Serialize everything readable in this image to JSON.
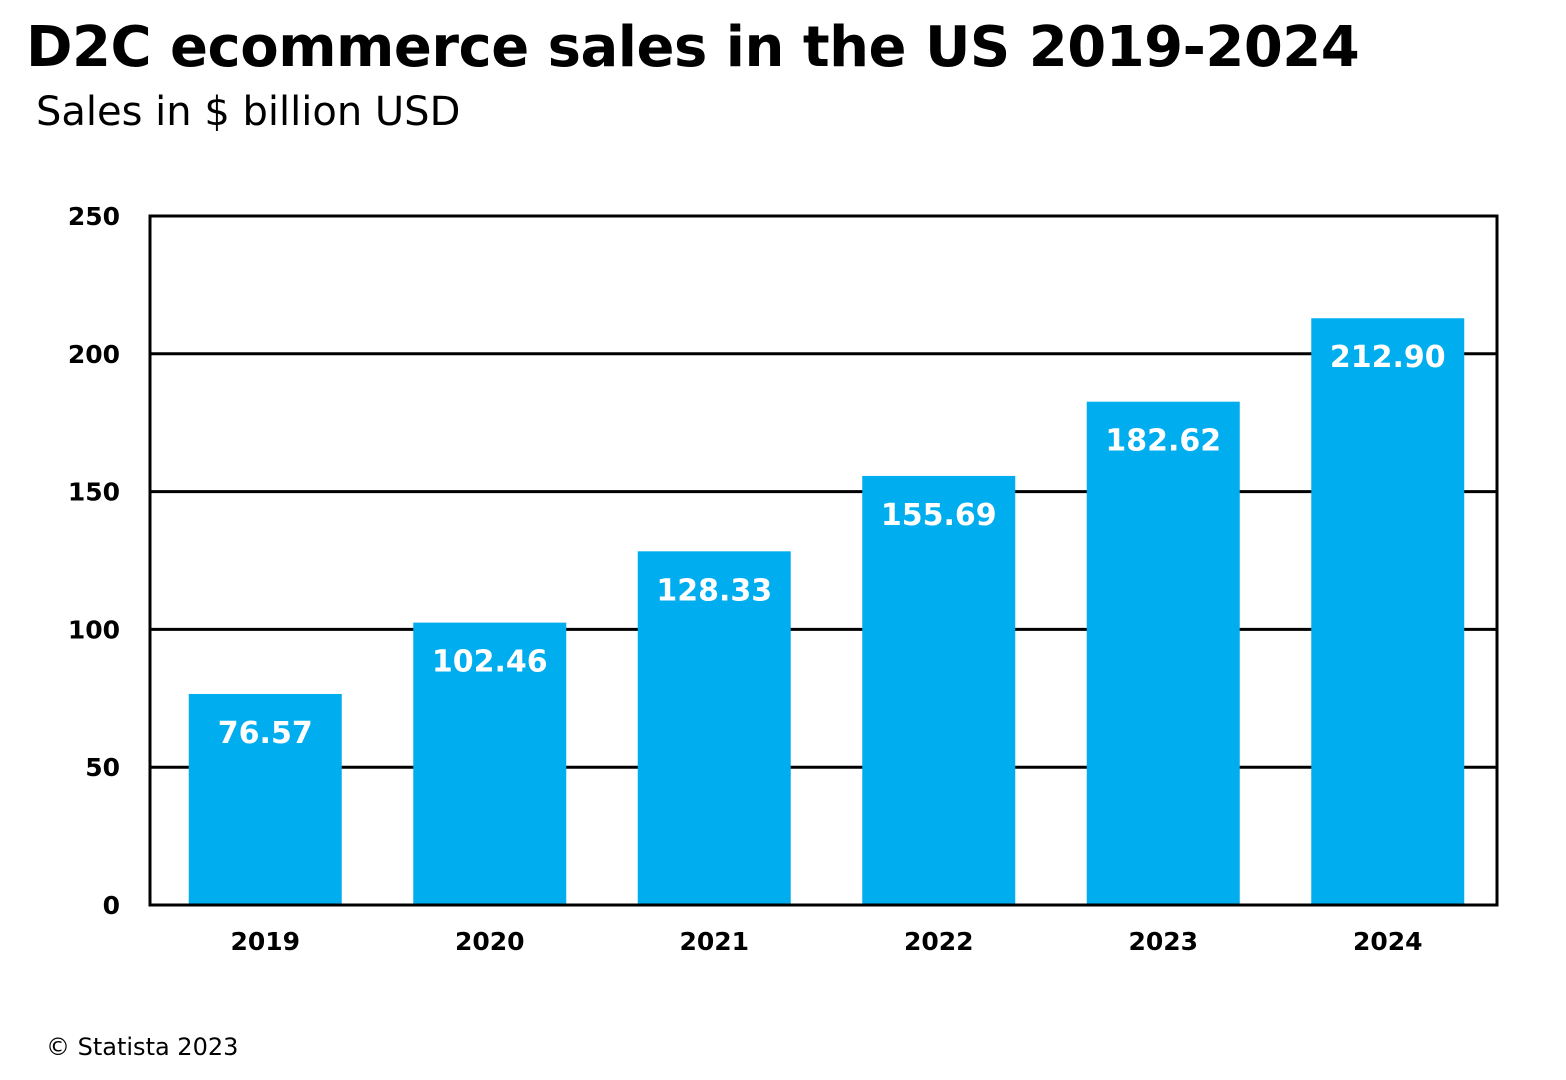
{
  "header": {
    "title": "D2C ecommerce sales in the US 2019-2024",
    "subtitle": "Sales in $ billion USD"
  },
  "footer": {
    "source": "© Statista 2023"
  },
  "chart_data": {
    "type": "bar",
    "title": "D2C ecommerce sales in the US 2019-2024",
    "subtitle": "Sales in $ billion USD",
    "xlabel": "",
    "ylabel": "",
    "categories": [
      "2019",
      "2020",
      "2021",
      "2022",
      "2023",
      "2024"
    ],
    "values": [
      76.57,
      102.46,
      128.33,
      155.69,
      182.62,
      212.9
    ],
    "value_labels": [
      "76.57",
      "102.46",
      "128.33",
      "155.69",
      "182.62",
      "212.90"
    ],
    "ylim": [
      0,
      250
    ],
    "yticks": [
      0,
      50,
      100,
      150,
      200,
      250
    ],
    "ytick_labels": [
      "0",
      "50",
      "100",
      "150",
      "200",
      "250"
    ],
    "grid": true,
    "legend": "none",
    "bar_color": "#00ADEE",
    "label_color": "#FFFFFF",
    "axis_color": "#000000"
  }
}
